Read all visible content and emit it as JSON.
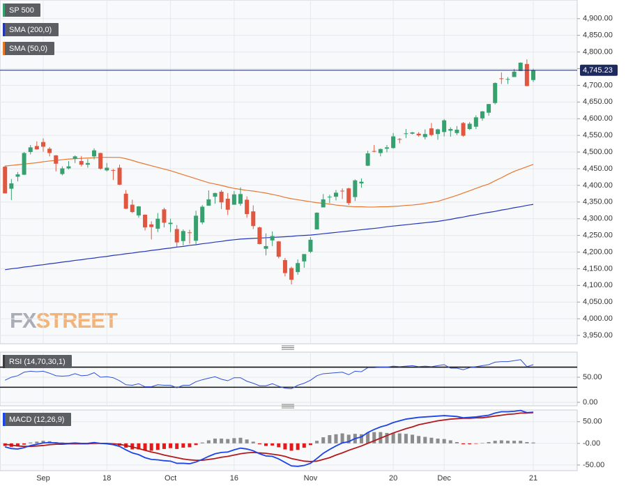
{
  "chart_data": [
    {
      "type": "candlestick",
      "name": "SP 500",
      "up_color": "#36a06e",
      "down_color": "#e0563f",
      "categories": [
        null,
        null,
        null,
        null,
        null,
        null,
        "Sep",
        null,
        null,
        null,
        null,
        null,
        null,
        null,
        null,
        null,
        "18",
        null,
        null,
        null,
        null,
        null,
        null,
        null,
        null,
        null,
        "Oct",
        null,
        null,
        null,
        null,
        null,
        null,
        null,
        null,
        null,
        "16",
        null,
        null,
        null,
        null,
        null,
        null,
        null,
        null,
        null,
        null,
        null,
        "Nov",
        null,
        null,
        null,
        null,
        null,
        null,
        null,
        null,
        null,
        null,
        null,
        null,
        "20",
        null,
        null,
        null,
        null,
        null,
        null,
        null,
        "Dec",
        null,
        null,
        null,
        null,
        null,
        null,
        null,
        null,
        null,
        null,
        null,
        null,
        null,
        "21"
      ],
      "open": [
        4456,
        4390,
        4426,
        4432,
        4500,
        4518,
        4530,
        4510,
        4490,
        4434,
        4451,
        4480,
        4473,
        4462,
        4487,
        4497,
        4445,
        4446,
        4453,
        4375,
        4342,
        4310,
        4312,
        4283,
        4270,
        4328,
        4284,
        4269,
        4233,
        4259,
        4234,
        4289,
        4339,
        4366,
        4381,
        4360,
        4342,
        4345,
        4357,
        4322,
        4274,
        4210,
        4235,
        4232,
        4176,
        4152,
        4140,
        4172,
        4201,
        4268,
        4334,
        4364,
        4366,
        4384,
        4391,
        4365,
        4406,
        4459,
        4503,
        4497,
        4510,
        4512,
        4539,
        4554,
        4555,
        4555,
        4545,
        4571,
        4554,
        4560,
        4564,
        4557,
        4587,
        4569,
        4576,
        4601,
        4618,
        4647,
        4721,
        4719,
        4725,
        4743,
        4764,
        4716
      ],
      "high": [
        4459,
        4419,
        4440,
        4500,
        4521,
        4532,
        4541,
        4515,
        4491,
        4457,
        4473,
        4490,
        4488,
        4479,
        4511,
        4498,
        4467,
        4449,
        4462,
        4386,
        4357,
        4338,
        4313,
        4292,
        4317,
        4333,
        4300,
        4281,
        4268,
        4267,
        4324,
        4341,
        4385,
        4378,
        4386,
        4377,
        4383,
        4394,
        4367,
        4340,
        4276,
        4256,
        4262,
        4233,
        4182,
        4156,
        4178,
        4194,
        4245,
        4319,
        4374,
        4372,
        4386,
        4391,
        4393,
        4418,
        4421,
        4504,
        4521,
        4511,
        4521,
        4557,
        4542,
        4569,
        4560,
        4560,
        4568,
        4587,
        4570,
        4599,
        4574,
        4578,
        4590,
        4590,
        4610,
        4623,
        4644,
        4709,
        4739,
        4725,
        4749,
        4769,
        4778,
        4750
      ],
      "low": [
        4376,
        4356,
        4412,
        4431,
        4493,
        4507,
        4501,
        4487,
        4442,
        4430,
        4448,
        4467,
        4457,
        4453,
        4478,
        4447,
        4442,
        4416,
        4401,
        4329,
        4317,
        4303,
        4265,
        4238,
        4260,
        4274,
        4260,
        4216,
        4220,
        4225,
        4220,
        4283,
        4339,
        4345,
        4329,
        4311,
        4342,
        4339,
        4303,
        4269,
        4223,
        4190,
        4218,
        4181,
        4127,
        4103,
        4132,
        4153,
        4197,
        4268,
        4334,
        4347,
        4355,
        4359,
        4341,
        4353,
        4393,
        4458,
        4499,
        4487,
        4499,
        4510,
        4526,
        4542,
        4553,
        4546,
        4538,
        4547,
        4537,
        4547,
        4546,
        4551,
        4546,
        4566,
        4569,
        4594,
        4609,
        4643,
        4704,
        4704,
        4725,
        4743,
        4697,
        4710
      ],
      "close": [
        4376,
        4406,
        4433,
        4497,
        4514,
        4508,
        4516,
        4497,
        4465,
        4451,
        4457,
        4487,
        4462,
        4467,
        4505,
        4450,
        4453,
        4444,
        4402,
        4330,
        4320,
        4337,
        4274,
        4275,
        4300,
        4288,
        4288,
        4229,
        4263,
        4258,
        4309,
        4336,
        4358,
        4377,
        4349,
        4327,
        4373,
        4374,
        4314,
        4278,
        4224,
        4218,
        4248,
        4186,
        4137,
        4117,
        4167,
        4194,
        4237,
        4318,
        4358,
        4366,
        4378,
        4383,
        4347,
        4415,
        4411,
        4496,
        4502,
        4509,
        4514,
        4547,
        4538,
        4556,
        4559,
        4550,
        4554,
        4551,
        4568,
        4595,
        4569,
        4567,
        4549,
        4585,
        4604,
        4622,
        4644,
        4707,
        4719,
        4719,
        4741,
        4768,
        4698,
        4745
      ],
      "series": [
        {
          "name": "SMA (200,0)",
          "color": "#2234b8",
          "values": [
            4147,
            4150,
            4152,
            4155,
            4157,
            4160,
            4162,
            4165,
            4167,
            4170,
            4172,
            4175,
            4177,
            4180,
            4182,
            4185,
            4187,
            4190,
            4192,
            4195,
            4197,
            4200,
            4202,
            4205,
            4207,
            4210,
            4212,
            4215,
            4217,
            4220,
            4222,
            4225,
            4227,
            4230,
            4232,
            4235,
            4237,
            4239,
            4240,
            4241,
            4242,
            4243,
            4244,
            4245,
            4246,
            4247,
            4249,
            4250,
            4251,
            4253,
            4255,
            4257,
            4259,
            4261,
            4263,
            4265,
            4267,
            4269,
            4271,
            4273,
            4276,
            4278,
            4280,
            4282,
            4284,
            4286,
            4288,
            4290,
            4292,
            4295,
            4298,
            4302,
            4305,
            4309,
            4312,
            4316,
            4319,
            4322,
            4326,
            4329,
            4333,
            4336,
            4340,
            4343
          ]
        },
        {
          "name": "SMA (50,0)",
          "color": "#e8772e",
          "values": [
            4458,
            4460,
            4462,
            4464,
            4466,
            4468,
            4471,
            4473,
            4475,
            4477,
            4479,
            4480,
            4481,
            4482,
            4483,
            4484,
            4484,
            4484,
            4484,
            4480,
            4475,
            4469,
            4464,
            4459,
            4454,
            4449,
            4444,
            4438,
            4432,
            4426,
            4420,
            4414,
            4408,
            4404,
            4400,
            4395,
            4391,
            4388,
            4385,
            4383,
            4380,
            4377,
            4373,
            4369,
            4364,
            4360,
            4357,
            4354,
            4351,
            4348,
            4346,
            4344,
            4341,
            4339,
            4337,
            4336,
            4336,
            4335,
            4335,
            4336,
            4336,
            4337,
            4338,
            4340,
            4341,
            4343,
            4346,
            4349,
            4352,
            4358,
            4364,
            4370,
            4377,
            4384,
            4391,
            4398,
            4404,
            4414,
            4423,
            4433,
            4442,
            4449,
            4456,
            4463
          ]
        }
      ],
      "last_price": {
        "value": 4745.23,
        "label": "4,745.23"
      },
      "watermark": [
        "FX",
        "STREET"
      ],
      "ylim": [
        3925,
        4956
      ],
      "yticks": [
        {
          "value": 3950,
          "label": "3,950.00"
        },
        {
          "value": 4000,
          "label": "4,000.00"
        },
        {
          "value": 4050,
          "label": "4,050.00"
        },
        {
          "value": 4100,
          "label": "4,100.00"
        },
        {
          "value": 4150,
          "label": "4,150.00"
        },
        {
          "value": 4200,
          "label": "4,200.00"
        },
        {
          "value": 4250,
          "label": "4,250.00"
        },
        {
          "value": 4300,
          "label": "4,300.00"
        },
        {
          "value": 4350,
          "label": "4,350.00"
        },
        {
          "value": 4400,
          "label": "4,400.00"
        },
        {
          "value": 4450,
          "label": "4,450.00"
        },
        {
          "value": 4500,
          "label": "4,500.00"
        },
        {
          "value": 4550,
          "label": "4,550.00"
        },
        {
          "value": 4600,
          "label": "4,600.00"
        },
        {
          "value": 4650,
          "label": "4,650.00"
        },
        {
          "value": 4700,
          "label": "4,700.00"
        },
        {
          "value": 4750,
          "label": "4,750.00"
        },
        {
          "value": 4800,
          "label": "4,800.00"
        },
        {
          "value": 4850,
          "label": "4,850.00"
        },
        {
          "value": 4900,
          "label": "4,900.00"
        }
      ],
      "grid": true
    },
    {
      "type": "line",
      "series": [
        {
          "name": "RSI (14,70,30,1)",
          "color": "#3050d8",
          "values": [
            44,
            50,
            53,
            60,
            62,
            61,
            62,
            58,
            53,
            52,
            53,
            57,
            53,
            54,
            59,
            50,
            51,
            49,
            43,
            35,
            34,
            37,
            31,
            31,
            35,
            34,
            34,
            29,
            34,
            34,
            41,
            45,
            48,
            51,
            46,
            43,
            49,
            49,
            42,
            38,
            33,
            33,
            37,
            32,
            28,
            27,
            34,
            38,
            44,
            53,
            57,
            58,
            59,
            60,
            55,
            62,
            61,
            69,
            69,
            70,
            70,
            72,
            71,
            72,
            73,
            71,
            72,
            71,
            73,
            75,
            68,
            68,
            65,
            69,
            71,
            73,
            75,
            80,
            81,
            81,
            83,
            85,
            71,
            75
          ]
        }
      ],
      "levels": [
        70,
        30
      ],
      "ylim": [
        -7,
        100
      ],
      "yticks": [
        {
          "value": 0,
          "label": "0.00"
        },
        {
          "value": 50,
          "label": "50.00"
        }
      ]
    },
    {
      "type": "macd",
      "name": "MACD (12,26,9)",
      "macd": {
        "color": "#1d44e6",
        "values": [
          -8,
          -12,
          -13,
          -10,
          -5,
          -2,
          1,
          2,
          1,
          0,
          0,
          1,
          0,
          0,
          2,
          0,
          -1,
          -3,
          -7,
          -15,
          -22,
          -26,
          -33,
          -37,
          -38,
          -40,
          -41,
          -46,
          -46,
          -47,
          -43,
          -37,
          -30,
          -24,
          -21,
          -20,
          -15,
          -11,
          -13,
          -17,
          -24,
          -29,
          -30,
          -36,
          -44,
          -52,
          -53,
          -51,
          -46,
          -35,
          -23,
          -14,
          -6,
          1,
          4,
          11,
          15,
          25,
          32,
          38,
          42,
          48,
          52,
          56,
          58,
          60,
          61,
          62,
          63,
          64,
          63,
          62,
          59,
          60,
          61,
          63,
          65,
          70,
          73,
          73,
          74,
          76,
          71,
          72
        ]
      },
      "signal": {
        "color": "#b3191c",
        "values": [
          -2,
          -4,
          -6,
          -7,
          -7,
          -6,
          -5,
          -3,
          -2,
          -2,
          -1,
          -1,
          -1,
          -1,
          0,
          0,
          0,
          -1,
          -2,
          -5,
          -8,
          -12,
          -16,
          -20,
          -23,
          -27,
          -30,
          -33,
          -36,
          -38,
          -39,
          -39,
          -37,
          -35,
          -32,
          -30,
          -27,
          -24,
          -22,
          -21,
          -22,
          -23,
          -25,
          -27,
          -30,
          -35,
          -38,
          -41,
          -42,
          -41,
          -37,
          -33,
          -27,
          -22,
          -16,
          -11,
          -6,
          0,
          6,
          12,
          18,
          24,
          29,
          34,
          38,
          43,
          46,
          49,
          52,
          54,
          56,
          57,
          58,
          58,
          59,
          59,
          61,
          63,
          65,
          67,
          68,
          70,
          70,
          71
        ]
      },
      "histogram": {
        "up_color": "#8c8c8c",
        "down_color": "#e41a1a",
        "values": [
          -6,
          -8,
          -7,
          -3,
          2,
          4,
          6,
          5,
          3,
          2,
          1,
          2,
          1,
          1,
          2,
          0,
          -1,
          -2,
          -5,
          -10,
          -14,
          -14,
          -17,
          -17,
          -15,
          -13,
          -11,
          -13,
          -10,
          -9,
          -4,
          2,
          7,
          11,
          11,
          10,
          12,
          13,
          9,
          4,
          -2,
          -6,
          -5,
          -9,
          -14,
          -17,
          -15,
          -10,
          -4,
          6,
          14,
          19,
          21,
          23,
          20,
          22,
          21,
          25,
          26,
          26,
          24,
          24,
          23,
          22,
          20,
          17,
          15,
          13,
          11,
          10,
          7,
          3,
          -2,
          -2,
          -1,
          1,
          3,
          6,
          7,
          6,
          6,
          6,
          3,
          2
        ]
      },
      "ylim": [
        -63,
        77
      ],
      "yticks": [
        {
          "value": -50,
          "label": "-50.00"
        },
        {
          "value": 0,
          "label": "-0.00"
        },
        {
          "value": 50,
          "label": "50.00"
        }
      ]
    }
  ]
}
